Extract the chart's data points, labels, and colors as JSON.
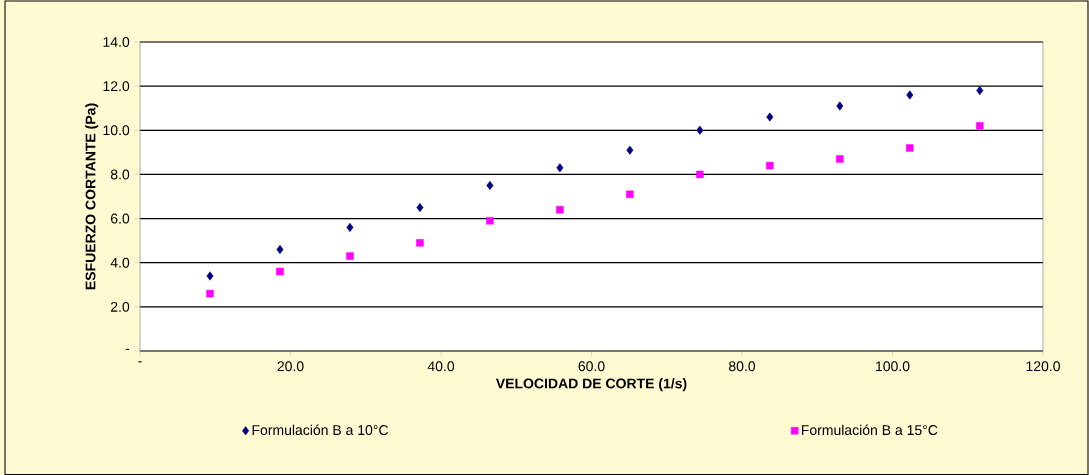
{
  "chart_data": {
    "type": "scatter",
    "xlabel": "VELOCIDAD DE CORTE (1/s)",
    "ylabel": "ESFUERZO CORTANTE (Pa)",
    "x": [
      9.3,
      18.6,
      27.9,
      37.2,
      46.5,
      55.8,
      65.1,
      74.4,
      83.7,
      93.0,
      102.3,
      111.6
    ],
    "series": [
      {
        "name": "Formulación B a 10°C",
        "color": "#000080",
        "marker": "diamond",
        "values": [
          3.4,
          4.6,
          5.6,
          6.5,
          7.5,
          8.3,
          9.1,
          10.0,
          10.6,
          11.1,
          11.6,
          11.8
        ]
      },
      {
        "name": "Formulación B a 15°C",
        "color": "#ff00ff",
        "marker": "square",
        "values": [
          2.6,
          3.6,
          4.3,
          4.9,
          5.9,
          6.4,
          7.1,
          8.0,
          8.4,
          8.7,
          9.2,
          10.2
        ]
      }
    ],
    "xlim": [
      0,
      120
    ],
    "ylim": [
      0,
      14
    ],
    "xticks": [
      {
        "value": 0,
        "label": "-"
      },
      {
        "value": 20,
        "label": "20.0"
      },
      {
        "value": 40,
        "label": "40.0"
      },
      {
        "value": 60,
        "label": "60.0"
      },
      {
        "value": 80,
        "label": "80.0"
      },
      {
        "value": 100,
        "label": "100.0"
      },
      {
        "value": 120,
        "label": "120.0"
      }
    ],
    "yticks": [
      {
        "value": 0,
        "label": "-"
      },
      {
        "value": 2,
        "label": "2.0"
      },
      {
        "value": 4,
        "label": "4.0"
      },
      {
        "value": 6,
        "label": "6.0"
      },
      {
        "value": 8,
        "label": "8.0"
      },
      {
        "value": 10,
        "label": "10.0"
      },
      {
        "value": 12,
        "label": "12.0"
      },
      {
        "value": 14,
        "label": "14.0"
      }
    ],
    "grid": "y",
    "legend": "bottom"
  }
}
